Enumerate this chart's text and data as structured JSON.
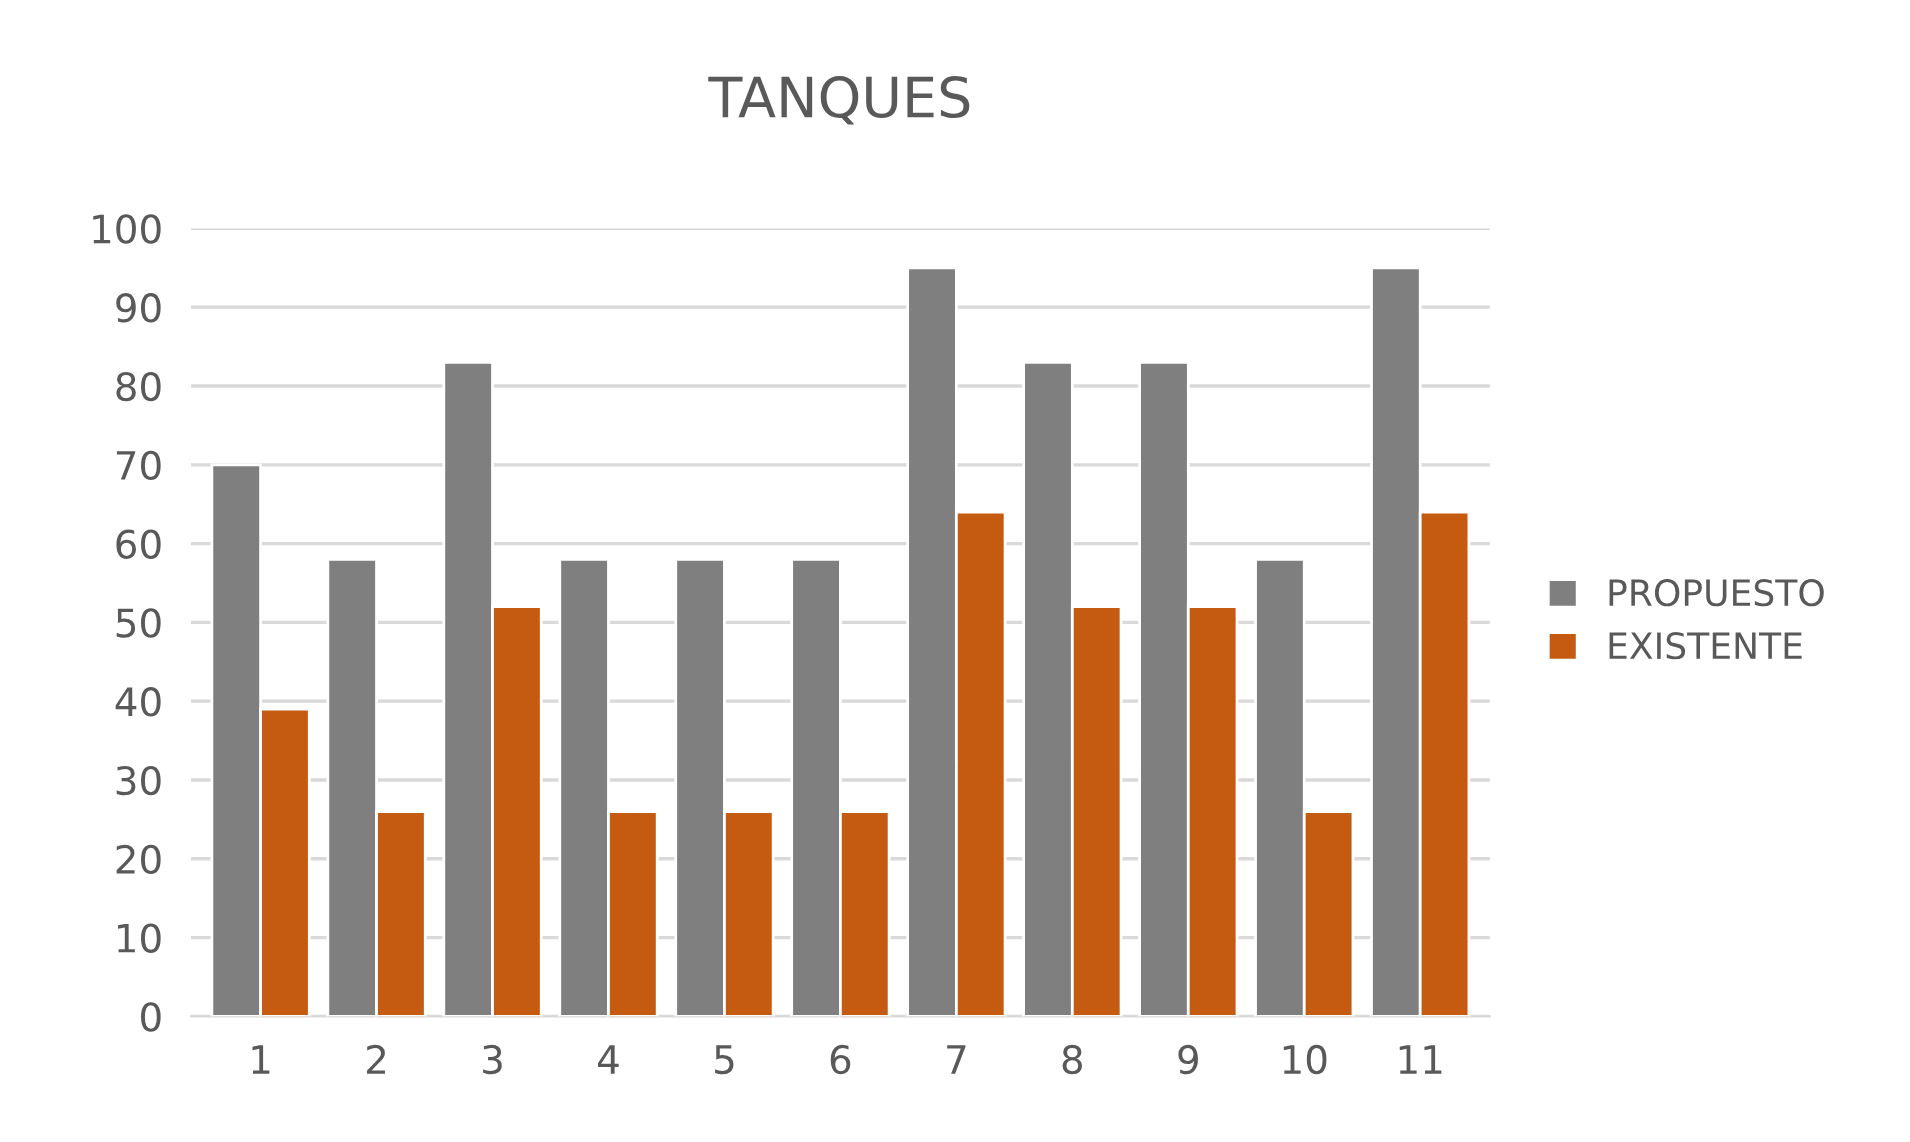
{
  "chart_data": {
    "type": "bar",
    "title": "TANQUES",
    "categories": [
      "1",
      "2",
      "3",
      "4",
      "5",
      "6",
      "7",
      "8",
      "9",
      "10",
      "11"
    ],
    "series": [
      {
        "name": "PROPUESTO",
        "color": "#7f7f7f",
        "values": [
          70,
          58,
          83,
          58,
          58,
          58,
          95,
          83,
          83,
          58,
          95
        ]
      },
      {
        "name": "EXISTENTE",
        "color": "#c55a11",
        "values": [
          39,
          26,
          52,
          26,
          26,
          26,
          64,
          52,
          52,
          26,
          64
        ]
      }
    ],
    "ylim": [
      0,
      100
    ],
    "yticks": [
      0,
      10,
      20,
      30,
      40,
      50,
      60,
      70,
      80,
      90,
      100
    ],
    "grid": "y",
    "legend": "right"
  }
}
